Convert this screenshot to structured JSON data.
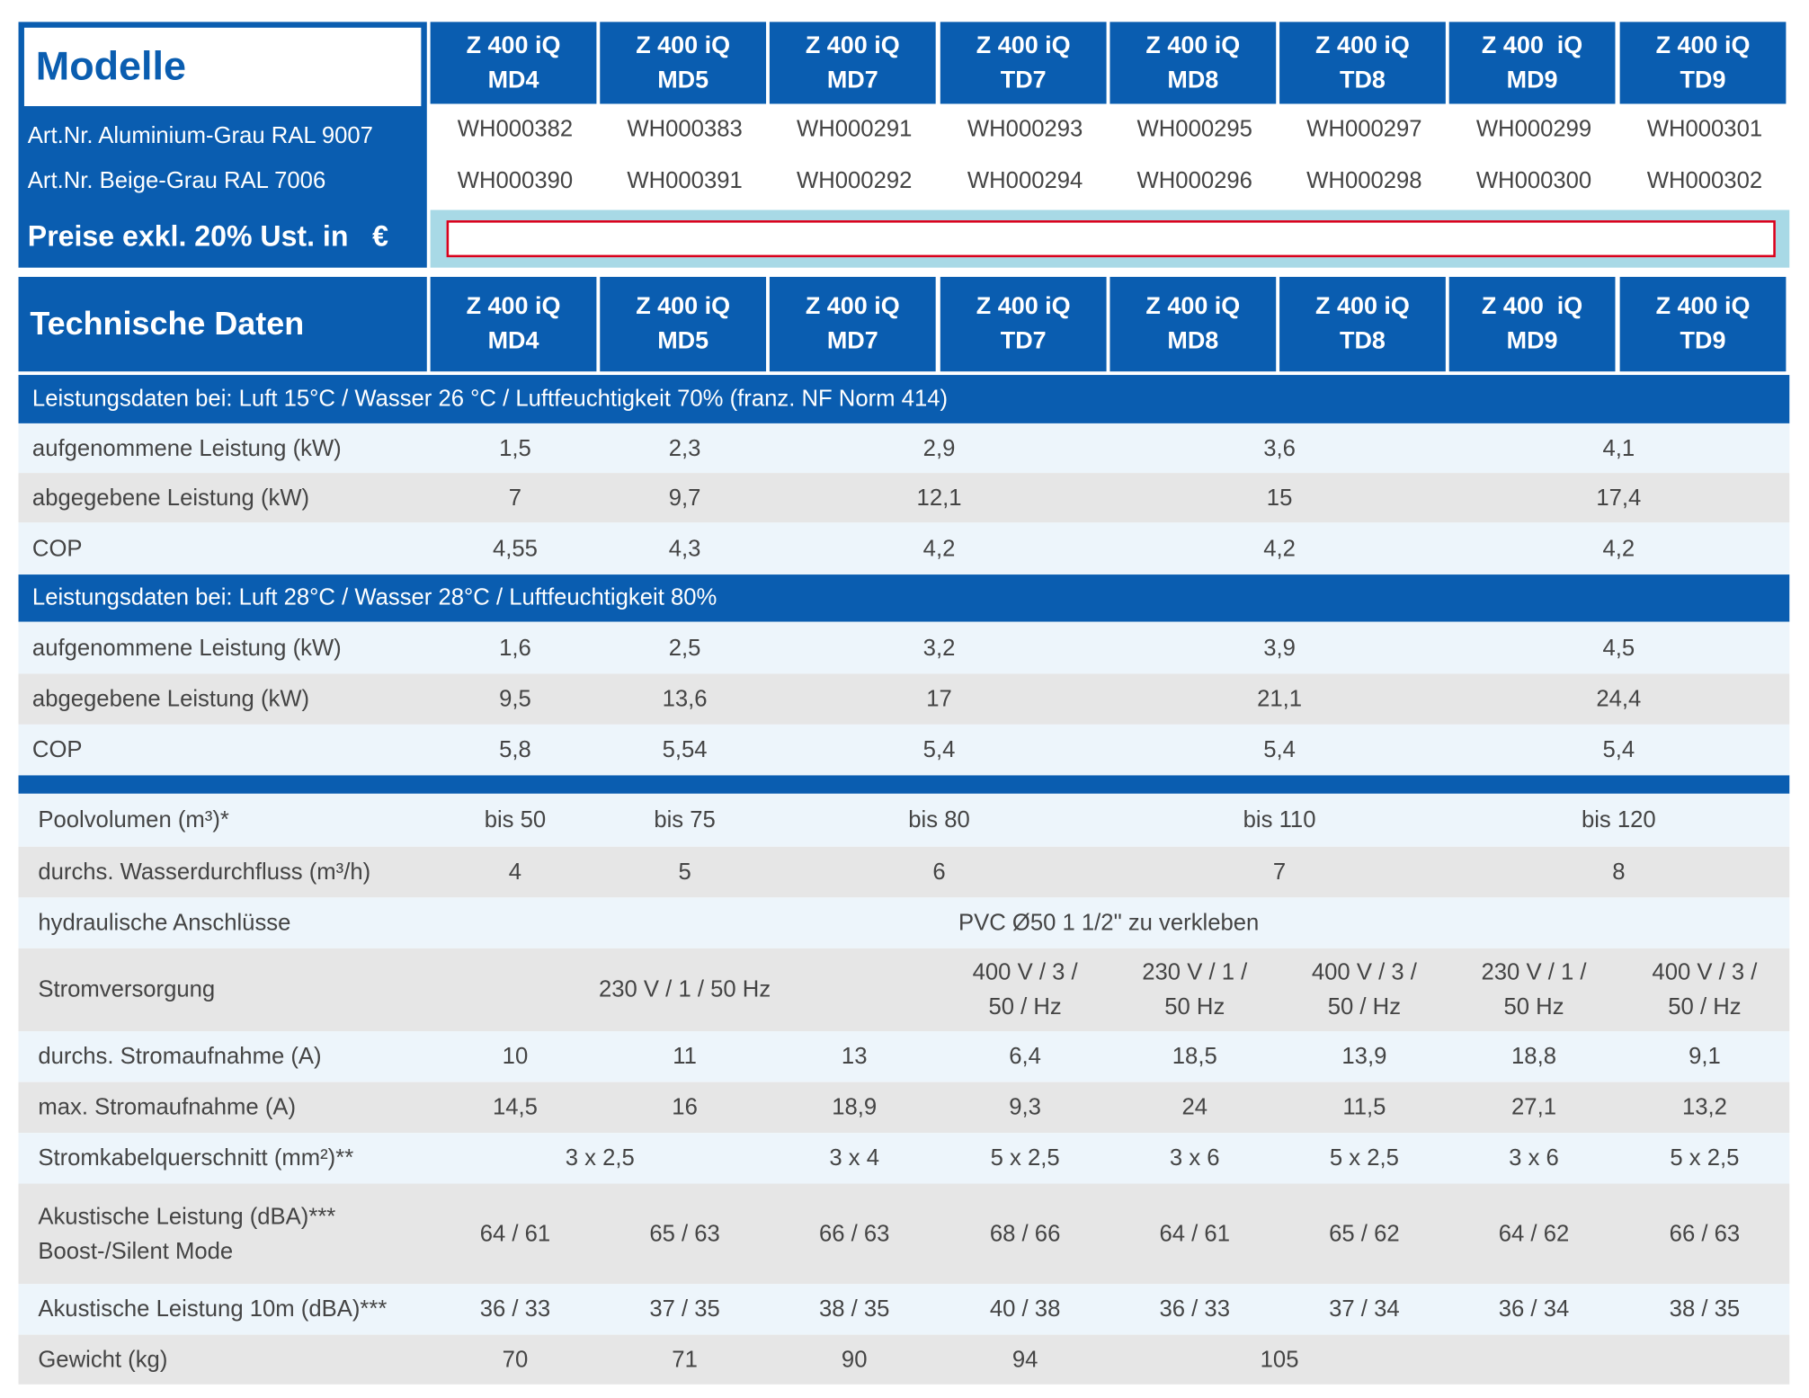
{
  "models": [
    {
      "line1": "Z 400 iQ",
      "line2": "MD4"
    },
    {
      "line1": "Z 400 iQ",
      "line2": "MD5"
    },
    {
      "line1": "Z 400 iQ",
      "line2": "MD7"
    },
    {
      "line1": "Z 400 iQ",
      "line2": "TD7"
    },
    {
      "line1": "Z 400 iQ",
      "line2": "MD8"
    },
    {
      "line1": "Z 400 iQ",
      "line2": "TD8"
    },
    {
      "line1": "Z 400  iQ",
      "line2": "MD9"
    },
    {
      "line1": "Z 400 iQ",
      "line2": "TD9"
    }
  ],
  "top": {
    "title": "Modelle",
    "art_alu_label": "Art.Nr. Aluminium-Grau RAL 9007",
    "art_beige_label": "Art.Nr. Beige-Grau RAL 7006",
    "price_label": "Preise exkl. 20% Ust. in   €",
    "art_alu": [
      "WH000382",
      "WH000383",
      "WH000291",
      "WH000293",
      "WH000295",
      "WH000297",
      "WH000299",
      "WH000301"
    ],
    "art_beige": [
      "WH000390",
      "WH000391",
      "WH000292",
      "WH000294",
      "WH000296",
      "WH000298",
      "WH000300",
      "WH000302"
    ],
    "price_value": ""
  },
  "tech": {
    "title": "Technische Daten",
    "section1": "Leistungsdaten bei: Luft 15°C / Wasser 26 °C / Luftfeuchtigkeit 70% (franz. NF Norm 414)",
    "section2": "Leistungsdaten bei: Luft 28°C / Wasser 28°C / Luftfeuchtigkeit 80%",
    "rows": [
      {
        "label": "aufgenommene Leistung (kW)",
        "cells": [
          {
            "t": "1,5",
            "s": 1
          },
          {
            "t": "2,3",
            "s": 1
          },
          {
            "t": "2,9",
            "s": 2
          },
          {
            "t": "3,6",
            "s": 2
          },
          {
            "t": "4,1",
            "s": 2
          }
        ]
      },
      {
        "label": "abgegebene Leistung (kW)",
        "cells": [
          {
            "t": "7",
            "s": 1
          },
          {
            "t": "9,7",
            "s": 1
          },
          {
            "t": "12,1",
            "s": 2
          },
          {
            "t": "15",
            "s": 2
          },
          {
            "t": "17,4",
            "s": 2
          }
        ]
      },
      {
        "label": "COP",
        "cells": [
          {
            "t": "4,55",
            "s": 1
          },
          {
            "t": "4,3",
            "s": 1
          },
          {
            "t": "4,2",
            "s": 2
          },
          {
            "t": "4,2",
            "s": 2
          },
          {
            "t": "4,2",
            "s": 2
          }
        ]
      },
      {
        "label": "aufgenommene Leistung (kW)",
        "cells": [
          {
            "t": "1,6",
            "s": 1
          },
          {
            "t": "2,5",
            "s": 1
          },
          {
            "t": "3,2",
            "s": 2
          },
          {
            "t": "3,9",
            "s": 2
          },
          {
            "t": "4,5",
            "s": 2
          }
        ]
      },
      {
        "label": "abgegebene Leistung (kW)",
        "cells": [
          {
            "t": "9,5",
            "s": 1
          },
          {
            "t": "13,6",
            "s": 1
          },
          {
            "t": "17",
            "s": 2
          },
          {
            "t": "21,1",
            "s": 2
          },
          {
            "t": "24,4",
            "s": 2
          }
        ]
      },
      {
        "label": "COP",
        "cells": [
          {
            "t": "5,8",
            "s": 1
          },
          {
            "t": "5,54",
            "s": 1
          },
          {
            "t": "5,4",
            "s": 2
          },
          {
            "t": "5,4",
            "s": 2
          },
          {
            "t": "5,4",
            "s": 2
          }
        ]
      },
      {
        "label": "Poolvolumen (m³)*",
        "cells": [
          {
            "t": "bis 50",
            "s": 1
          },
          {
            "t": "bis 75",
            "s": 1
          },
          {
            "t": "bis 80",
            "s": 2
          },
          {
            "t": "bis 110",
            "s": 2
          },
          {
            "t": "bis 120",
            "s": 2
          }
        ]
      },
      {
        "label": "durchs. Wasserdurchfluss (m³/h)",
        "cells": [
          {
            "t": "4",
            "s": 1
          },
          {
            "t": "5",
            "s": 1
          },
          {
            "t": "6",
            "s": 2
          },
          {
            "t": "7",
            "s": 2
          },
          {
            "t": "8",
            "s": 2
          }
        ]
      },
      {
        "label": "hydraulische Anschlüsse",
        "cells": [
          {
            "t": "PVC Ø50 1 1/2\" zu verkleben",
            "s": 8
          }
        ]
      },
      {
        "label": "Stromversorgung",
        "cells": [
          {
            "t": "230 V / 1 / 50 Hz",
            "s": 3
          },
          {
            "t": "400 V / 3 / 50 / Hz",
            "s": 1
          },
          {
            "t": "230 V / 1 / 50 Hz",
            "s": 1
          },
          {
            "t": "400 V / 3 / 50 / Hz",
            "s": 1
          },
          {
            "t": "230 V / 1 / 50 Hz",
            "s": 1
          },
          {
            "t": "400 V / 3 / 50 / Hz",
            "s": 1
          }
        ]
      },
      {
        "label": "durchs. Stromaufnahme (A)",
        "cells": [
          {
            "t": "10",
            "s": 1
          },
          {
            "t": "11",
            "s": 1
          },
          {
            "t": "13",
            "s": 1
          },
          {
            "t": "6,4",
            "s": 1
          },
          {
            "t": "18,5",
            "s": 1
          },
          {
            "t": "13,9",
            "s": 1
          },
          {
            "t": "18,8",
            "s": 1
          },
          {
            "t": "9,1",
            "s": 1
          }
        ]
      },
      {
        "label": "max. Stromaufnahme (A)",
        "cells": [
          {
            "t": "14,5",
            "s": 1
          },
          {
            "t": "16",
            "s": 1
          },
          {
            "t": "18,9",
            "s": 1
          },
          {
            "t": "9,3",
            "s": 1
          },
          {
            "t": "24",
            "s": 1
          },
          {
            "t": "11,5",
            "s": 1
          },
          {
            "t": "27,1",
            "s": 1
          },
          {
            "t": "13,2",
            "s": 1
          }
        ]
      },
      {
        "label": "Stromkabelquerschnitt (mm²)**",
        "cells": [
          {
            "t": "3 x 2,5",
            "s": 2
          },
          {
            "t": "3 x 4",
            "s": 1
          },
          {
            "t": "5 x 2,5",
            "s": 1
          },
          {
            "t": "3 x 6",
            "s": 1
          },
          {
            "t": "5 x 2,5",
            "s": 1
          },
          {
            "t": "3 x 6",
            "s": 1
          },
          {
            "t": "5 x 2,5",
            "s": 1
          }
        ]
      },
      {
        "label": "Akustische Leistung (dBA)***\nBoost-/Silent Mode",
        "cells": [
          {
            "t": "64 / 61",
            "s": 1
          },
          {
            "t": "65 / 63",
            "s": 1
          },
          {
            "t": "66 / 63",
            "s": 1
          },
          {
            "t": "68 / 66",
            "s": 1
          },
          {
            "t": "64 / 61",
            "s": 1
          },
          {
            "t": "65 / 62",
            "s": 1
          },
          {
            "t": "64 / 62",
            "s": 1
          },
          {
            "t": "66 / 63",
            "s": 1
          }
        ]
      },
      {
        "label": "Akustische Leistung 10m (dBA)***",
        "cells": [
          {
            "t": "36 / 33",
            "s": 1
          },
          {
            "t": "37 / 35",
            "s": 1
          },
          {
            "t": "38 / 35",
            "s": 1
          },
          {
            "t": "40 / 38",
            "s": 1
          },
          {
            "t": "36 / 33",
            "s": 1
          },
          {
            "t": "37 / 34",
            "s": 1
          },
          {
            "t": "36 / 34",
            "s": 1
          },
          {
            "t": "38 / 35",
            "s": 1
          }
        ]
      },
      {
        "label": "Gewicht (kg)",
        "cells": [
          {
            "t": "70",
            "s": 1
          },
          {
            "t": "71",
            "s": 1
          },
          {
            "t": "90",
            "s": 1
          },
          {
            "t": "94",
            "s": 1
          },
          {
            "t": "105",
            "s": 2
          },
          {
            "t": "",
            "s": 2
          }
        ]
      }
    ]
  },
  "colors": {
    "brand_blue": "#0a5db0",
    "price_frame": "#a8d9e6",
    "price_border": "#d9001b"
  }
}
